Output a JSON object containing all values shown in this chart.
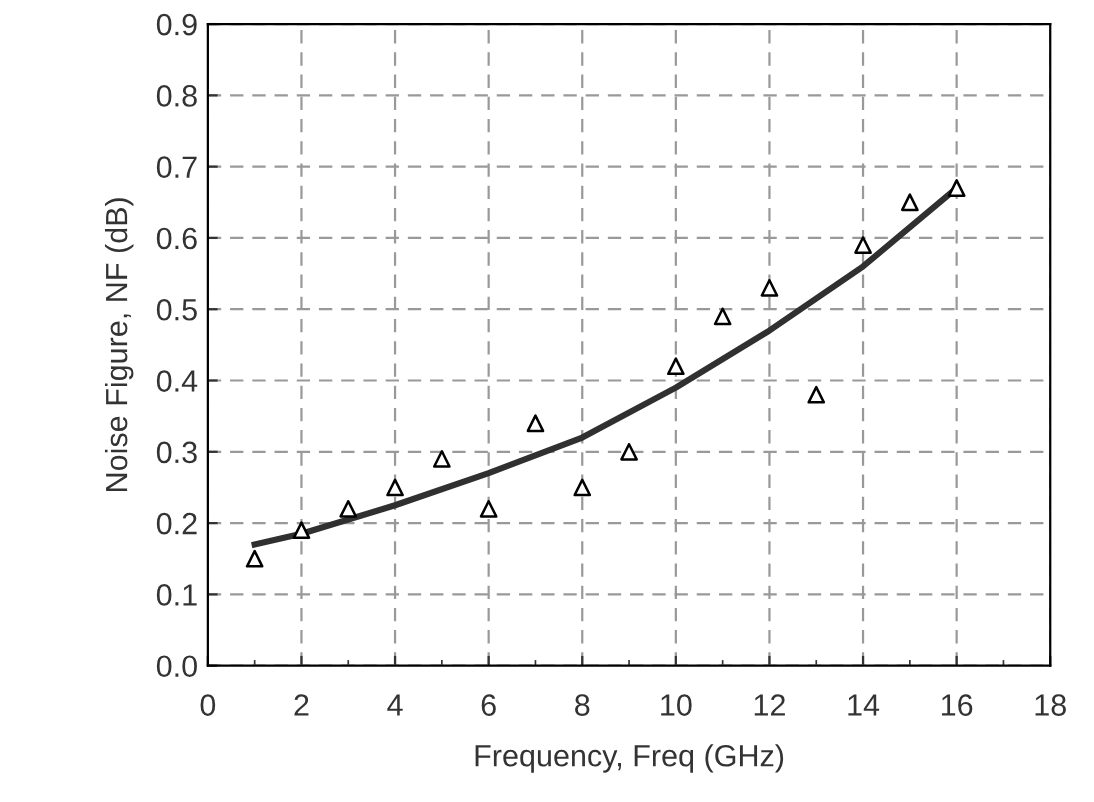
{
  "chart_data": {
    "type": "scatter",
    "xlabel": "Frequency, Freq (GHz)",
    "ylabel": "Noise Figure, NF (dB)",
    "xlim": [
      0,
      18
    ],
    "ylim": [
      0,
      0.9
    ],
    "xticks": [
      0,
      {
        "value": 1,
        "label": null
      },
      2,
      {
        "value": 3,
        "label": null
      },
      4,
      {
        "value": 5,
        "label": null
      },
      6,
      {
        "value": 7,
        "label": null
      },
      8,
      {
        "value": 9,
        "label": null
      },
      10,
      {
        "value": 11,
        "label": null
      },
      12,
      {
        "value": 13,
        "label": null
      },
      14,
      {
        "value": 15,
        "label": null
      },
      16,
      {
        "value": 17,
        "label": null
      },
      18
    ],
    "yticks": [
      {
        "value": 0,
        "label": "0.0"
      },
      0.1,
      0.2,
      0.3,
      0.4,
      0.5,
      0.6,
      0.7,
      0.8,
      0.9
    ],
    "grid": true,
    "series": [
      {
        "marker": "triangle",
        "color": "#000000",
        "x": [
          1,
          2,
          3,
          4,
          5,
          6,
          7,
          8,
          9,
          10,
          11,
          12,
          13,
          14,
          15,
          16
        ],
        "values": [
          0.15,
          0.19,
          0.22,
          0.25,
          0.29,
          0.22,
          0.34,
          0.25,
          0.3,
          0.42,
          0.49,
          0.53,
          0.38,
          0.59,
          0.65,
          0.67
        ]
      },
      {
        "type": "line",
        "marker": "none",
        "color": "#303030",
        "x": [
          1,
          2,
          4,
          6,
          8,
          10,
          12,
          14,
          16
        ],
        "values": [
          0.17,
          0.185,
          0.225,
          0.27,
          0.32,
          0.39,
          0.47,
          0.56,
          0.67
        ]
      }
    ]
  }
}
